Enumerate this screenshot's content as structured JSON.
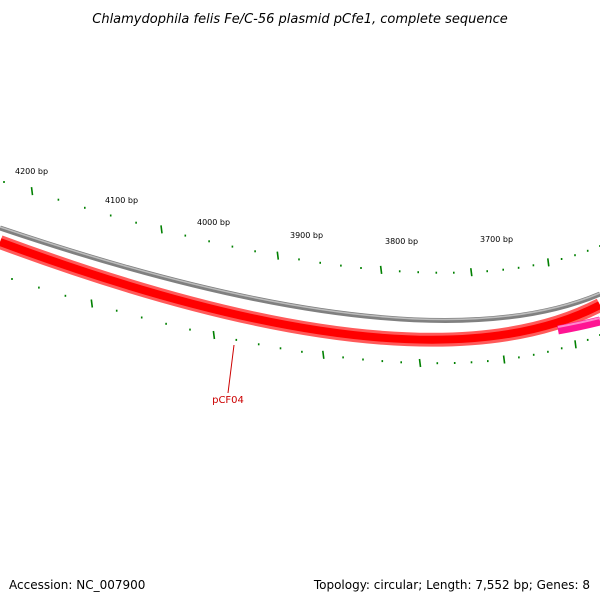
{
  "title": "Chlamydophila felis Fe/C-56 plasmid pCfe1, complete sequence",
  "accession_text": "Accession: NC_007900",
  "topology_text": "Topology: circular; Length: 7,552 bp; Genes: 8",
  "plasmid_length_bp": 7552,
  "tick_labels": [
    {
      "bp": 4200,
      "label": "4200 bp"
    },
    {
      "bp": 4100,
      "label": "4100 bp"
    },
    {
      "bp": 4000,
      "label": "4000 bp"
    },
    {
      "bp": 3900,
      "label": "3900 bp"
    },
    {
      "bp": 3800,
      "label": "3800 bp"
    },
    {
      "bp": 3700,
      "label": "3700 bp"
    }
  ],
  "genes": [
    {
      "name": "pCF04",
      "color": "#ff0000"
    },
    {
      "name": "",
      "color": "#ff1493"
    }
  ],
  "colors": {
    "backbone": "#808080",
    "gene_main": "#ff0000",
    "gene_secondary": "#ff1493",
    "ticks": "#008000",
    "gene_label": "#cc0000"
  }
}
